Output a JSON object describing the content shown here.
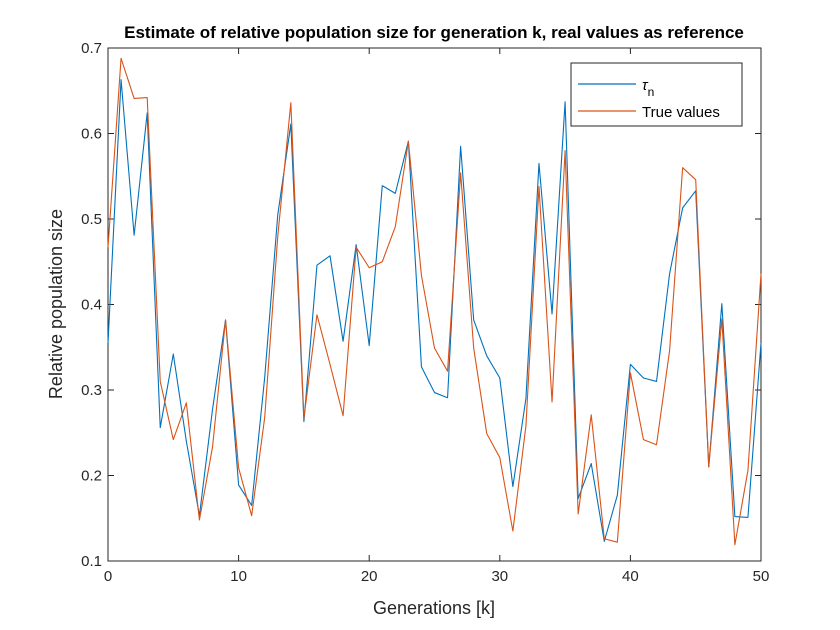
{
  "chart_data": {
    "type": "line",
    "title": "Estimate of relative population size for generation k, real values as reference",
    "xlabel": "Generations [k]",
    "ylabel": "Relative population size",
    "xlim": [
      0,
      50
    ],
    "ylim": [
      0.1,
      0.7
    ],
    "xticks": [
      0,
      10,
      20,
      30,
      40,
      50
    ],
    "yticks": [
      0.1,
      0.2,
      0.3,
      0.4,
      0.5,
      0.6,
      0.7
    ],
    "ytick_labels": [
      "0.1",
      "0.2",
      "0.3",
      "0.4",
      "0.5",
      "0.6",
      "0.7"
    ],
    "grid": false,
    "legend_position": "top-right",
    "x": [
      0,
      1,
      2,
      3,
      4,
      5,
      6,
      7,
      8,
      9,
      10,
      11,
      12,
      13,
      14,
      15,
      16,
      17,
      18,
      19,
      20,
      21,
      22,
      23,
      24,
      25,
      26,
      27,
      28,
      29,
      30,
      31,
      32,
      33,
      34,
      35,
      36,
      37,
      38,
      39,
      40,
      41,
      42,
      43,
      44,
      45,
      46,
      47,
      48,
      49,
      50
    ],
    "series": [
      {
        "name": "τ",
        "name_subscript": "n",
        "color": "#0072BD",
        "values": [
          0.355,
          0.663,
          0.481,
          0.624,
          0.256,
          0.342,
          0.24,
          0.153,
          0.277,
          0.382,
          0.189,
          0.165,
          0.315,
          0.505,
          0.611,
          0.263,
          0.446,
          0.457,
          0.357,
          0.47,
          0.352,
          0.539,
          0.53,
          0.591,
          0.327,
          0.297,
          0.291,
          0.585,
          0.382,
          0.34,
          0.314,
          0.187,
          0.29,
          0.565,
          0.389,
          0.637,
          0.173,
          0.214,
          0.123,
          0.177,
          0.33,
          0.314,
          0.31,
          0.436,
          0.513,
          0.533,
          0.21,
          0.401,
          0.152,
          0.151,
          0.355
        ]
      },
      {
        "name": "True values",
        "color": "#D95319",
        "values": [
          0.467,
          0.688,
          0.641,
          0.642,
          0.31,
          0.242,
          0.285,
          0.148,
          0.233,
          0.382,
          0.209,
          0.153,
          0.268,
          0.48,
          0.636,
          0.267,
          0.388,
          0.33,
          0.27,
          0.467,
          0.443,
          0.45,
          0.491,
          0.591,
          0.434,
          0.349,
          0.322,
          0.554,
          0.349,
          0.249,
          0.221,
          0.135,
          0.258,
          0.538,
          0.286,
          0.58,
          0.155,
          0.271,
          0.126,
          0.122,
          0.32,
          0.242,
          0.236,
          0.346,
          0.56,
          0.546,
          0.21,
          0.383,
          0.119,
          0.206,
          0.436
        ]
      }
    ]
  }
}
